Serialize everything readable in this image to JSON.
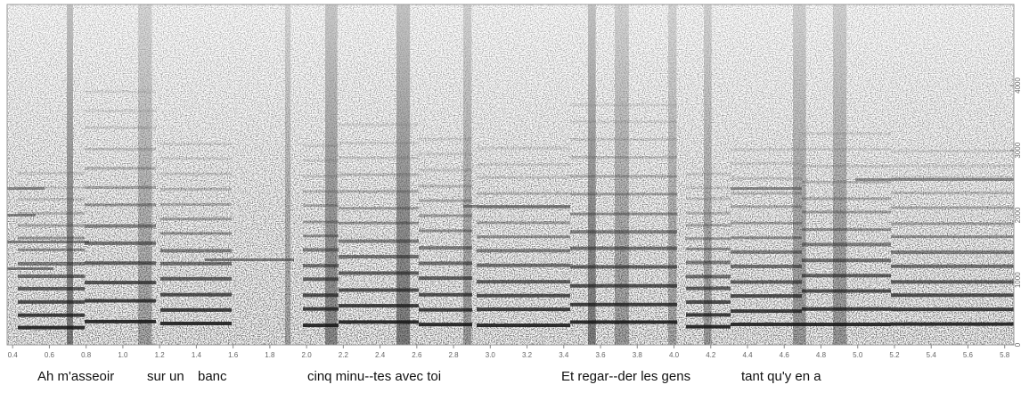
{
  "chart_data": {
    "type": "spectrogram",
    "xlim": [
      0.37,
      5.85
    ],
    "xticks": [
      0.4,
      0.6,
      0.8,
      {
        "value": 1,
        "label": "1.0"
      },
      1.2,
      1.4,
      1.6,
      1.8,
      {
        "value": 2,
        "label": "2.0"
      },
      2.2,
      2.4,
      2.6,
      2.8,
      {
        "value": 3,
        "label": "3.0"
      },
      3.2,
      3.4,
      3.6,
      3.8,
      {
        "value": 4,
        "label": "4.0"
      },
      4.2,
      4.4,
      4.6,
      4.8,
      {
        "value": 5,
        "label": "5.0"
      },
      5.2,
      5.4,
      5.6,
      5.8
    ],
    "ylim": [
      0,
      5250
    ],
    "yticks": [
      0,
      1000,
      2000,
      3000,
      4000
    ],
    "annotations": [
      "Ah m'asseoir",
      "sur un",
      "banc",
      "cinq minu--tes avec toi",
      "Et regar--der les gens",
      "tant qu'y en a"
    ]
  }
}
